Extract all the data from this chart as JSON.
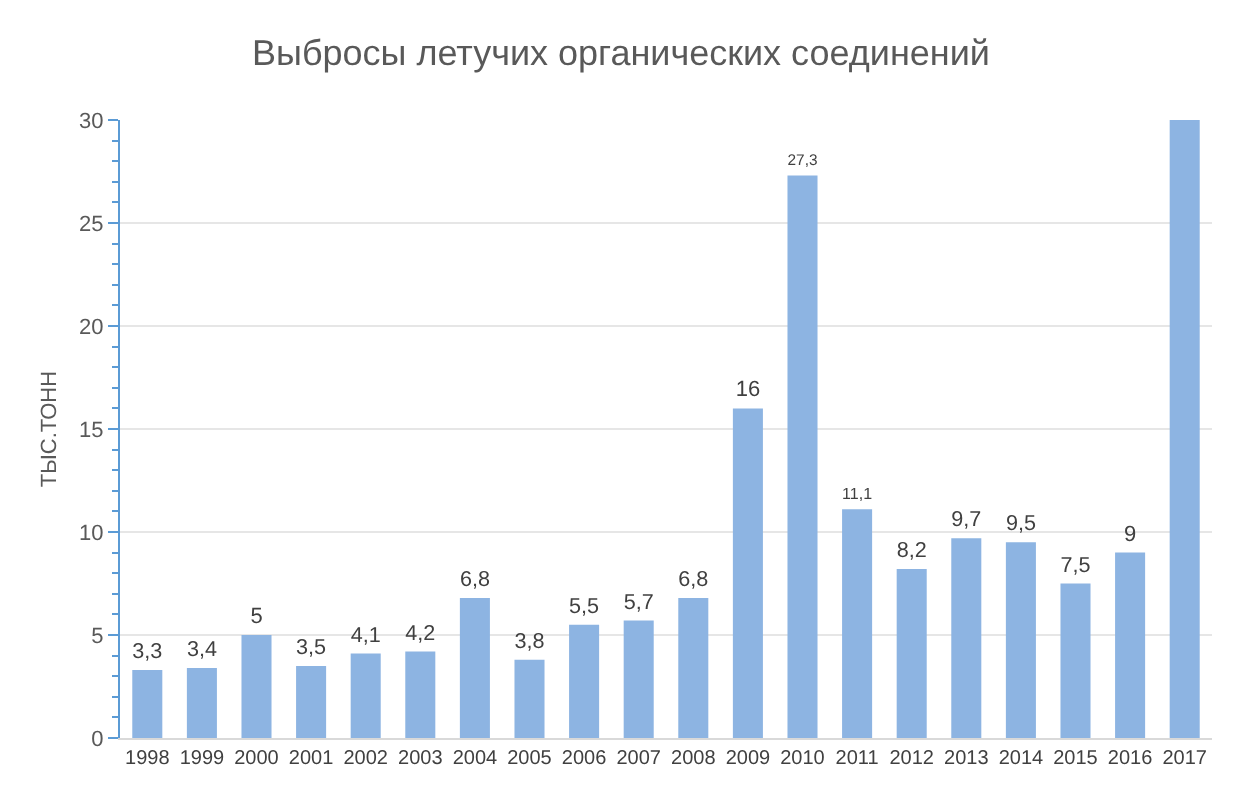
{
  "chart_data": {
    "type": "bar",
    "title": "Выбросы летучих органических соединений",
    "ylabel": "ТЫС.ТОНН",
    "categories": [
      "1998",
      "1999",
      "2000",
      "2001",
      "2002",
      "2003",
      "2004",
      "2005",
      "2006",
      "2007",
      "2008",
      "2009",
      "2010",
      "2011",
      "2012",
      "2013",
      "2014",
      "2015",
      "2016",
      "2017"
    ],
    "values": [
      3.3,
      3.4,
      5,
      3.5,
      4.1,
      4.2,
      6.8,
      3.8,
      5.5,
      5.7,
      6.8,
      16,
      27.3,
      11.1,
      8.2,
      9.7,
      9.5,
      7.5,
      9,
      30
    ],
    "value_labels": [
      "3,3",
      "3,4",
      "5",
      "3,5",
      "4,1",
      "4,2",
      "6,8",
      "3,8",
      "5,5",
      "5,7",
      "6,8",
      "16",
      "27,3",
      "11,1",
      "8,2",
      "9,7",
      "9,5",
      "7,5",
      "9",
      null
    ],
    "color": "#8db4e2",
    "ylim": [
      0,
      30
    ],
    "yticks": [
      0,
      5,
      10,
      15,
      20,
      25,
      30
    ],
    "grid": "y",
    "legend": false
  }
}
